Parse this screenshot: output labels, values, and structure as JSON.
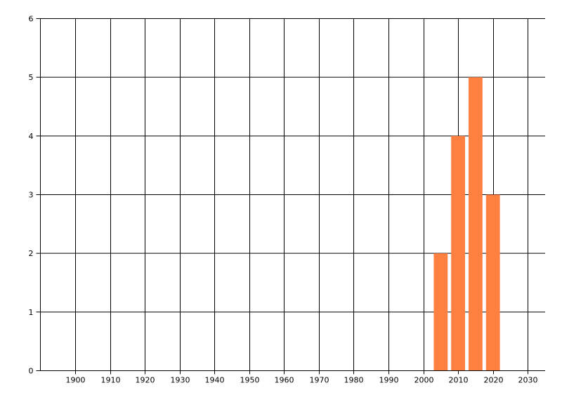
{
  "chart_data": {
    "type": "bar",
    "title": "",
    "xlabel": "",
    "ylabel": "",
    "x": [
      2005,
      2010,
      2015,
      2020
    ],
    "values": [
      2,
      4,
      5,
      3
    ],
    "bar_width_years": 4,
    "xlim": [
      1890,
      2035
    ],
    "ylim": [
      0,
      6
    ],
    "xticks": [
      1900,
      1910,
      1920,
      1930,
      1940,
      1950,
      1960,
      1970,
      1980,
      1990,
      2000,
      2010,
      2020,
      2030
    ],
    "yticks": [
      0,
      1,
      2,
      3,
      4,
      5,
      6
    ],
    "grid": true,
    "legend": "none",
    "colors": {
      "bar": "#ff8040",
      "grid": "#000000",
      "background": "#ffffff"
    }
  }
}
